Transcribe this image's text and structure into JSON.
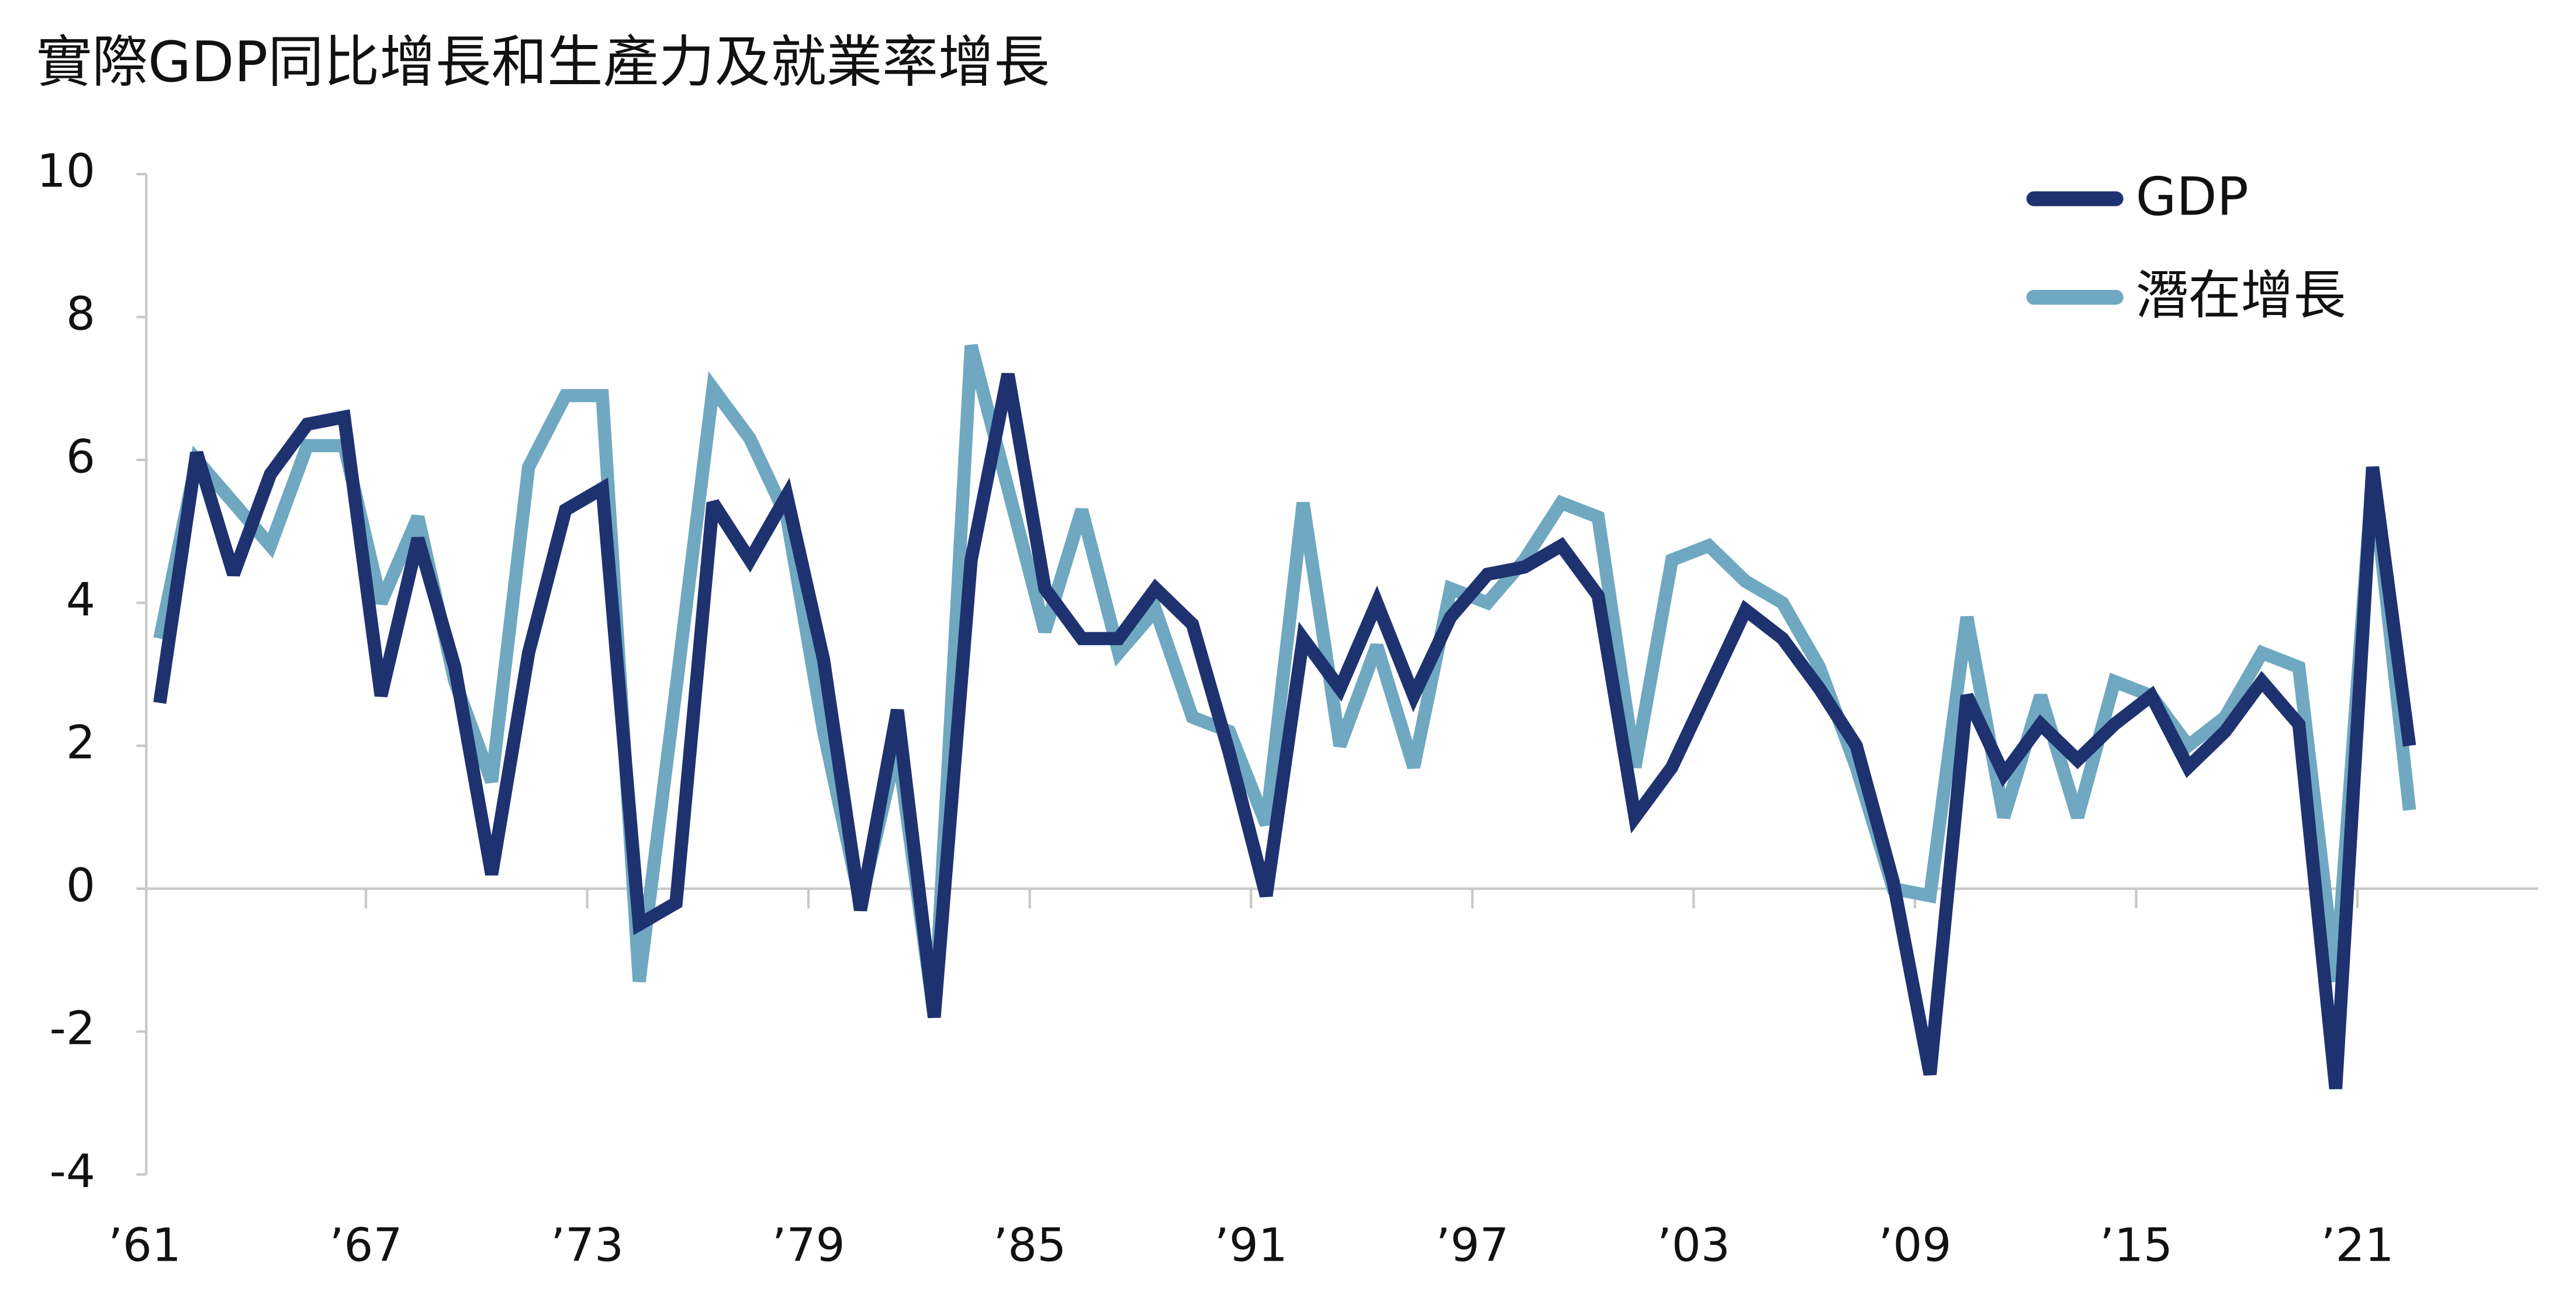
{
  "chart_data": {
    "type": "line",
    "title": "實際GDP同比增長和生產力及就業率增長",
    "categories": [
      "’61",
      null,
      null,
      null,
      null,
      null,
      "’67",
      null,
      null,
      null,
      null,
      null,
      "’73",
      null,
      null,
      null,
      null,
      null,
      "’79",
      null,
      null,
      null,
      null,
      null,
      "’85",
      null,
      null,
      null,
      null,
      null,
      "’91",
      null,
      null,
      null,
      null,
      null,
      "’97",
      null,
      null,
      null,
      null,
      null,
      "’03",
      null,
      null,
      null,
      null,
      null,
      "’09",
      null,
      null,
      null,
      null,
      null,
      "’15",
      null,
      null,
      null,
      null,
      null,
      "’21",
      null
    ],
    "series": [
      {
        "name": "GDP",
        "color": "#1f3270",
        "values": [
          2.6,
          6.1,
          4.4,
          5.8,
          6.5,
          6.6,
          2.7,
          4.9,
          3.1,
          0.2,
          3.3,
          5.3,
          5.6,
          -0.5,
          -0.2,
          5.4,
          4.6,
          5.5,
          3.2,
          -0.3,
          2.5,
          -1.8,
          4.6,
          7.2,
          4.2,
          3.5,
          3.5,
          4.2,
          3.7,
          1.9,
          -0.1,
          3.5,
          2.8,
          4.0,
          2.7,
          3.8,
          4.4,
          4.5,
          4.8,
          4.1,
          1.0,
          1.7,
          2.8,
          3.9,
          3.5,
          2.8,
          2.0,
          0.1,
          -2.6,
          2.7,
          1.6,
          2.3,
          1.8,
          2.3,
          2.7,
          1.7,
          2.2,
          2.9,
          2.3,
          -2.8,
          5.9,
          2.0
        ]
      },
      {
        "name": "潛在增長",
        "color": "#6fa8c0",
        "values": [
          3.5,
          6.0,
          5.4,
          4.8,
          6.2,
          6.2,
          4.0,
          5.2,
          2.9,
          1.5,
          5.9,
          6.9,
          6.9,
          -1.3,
          2.8,
          7.0,
          6.3,
          5.2,
          2.2,
          -0.2,
          2.0,
          -1.8,
          7.6,
          5.6,
          3.6,
          5.3,
          3.3,
          3.9,
          2.4,
          2.2,
          0.9,
          5.4,
          2.0,
          3.4,
          1.7,
          4.2,
          4.0,
          4.6,
          5.4,
          5.2,
          1.7,
          4.6,
          4.8,
          4.3,
          4.0,
          3.1,
          1.7,
          0.0,
          -0.1,
          3.8,
          1.0,
          2.7,
          1.0,
          2.9,
          2.7,
          2.0,
          2.4,
          3.3,
          3.1,
          -1.3,
          5.8,
          1.1
        ]
      }
    ],
    "ylim": [
      -4,
      10
    ],
    "yticks": [
      -4,
      -2,
      0,
      2,
      4,
      6,
      8,
      10
    ],
    "legend": "upper right"
  }
}
